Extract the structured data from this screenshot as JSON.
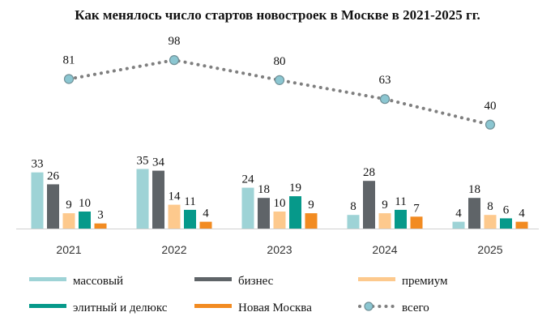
{
  "title": "Как менялось число стартов новостроек в Москве в 2021-2025 гг.",
  "chart_data": {
    "type": "bar",
    "title": "Как менялось число стартов новостроек в Москве в 2021-2025 гг.",
    "categories": [
      "2021",
      "2022",
      "2023",
      "2024",
      "2025"
    ],
    "series": [
      {
        "name": "массовый",
        "type": "bar",
        "color": "#9ed3d6",
        "values": [
          33,
          35,
          24,
          8,
          4
        ]
      },
      {
        "name": "бизнес",
        "type": "bar",
        "color": "#5f6468",
        "values": [
          26,
          34,
          18,
          28,
          18
        ]
      },
      {
        "name": "премиум",
        "type": "bar",
        "color": "#fdc98d",
        "values": [
          9,
          14,
          10,
          9,
          8
        ]
      },
      {
        "name": "элитный и делюкс",
        "type": "bar",
        "color": "#06998a",
        "values": [
          10,
          11,
          19,
          11,
          6
        ]
      },
      {
        "name": "Новая Москва",
        "type": "bar",
        "color": "#f28b21",
        "values": [
          3,
          4,
          9,
          7,
          4
        ]
      },
      {
        "name": "всего",
        "type": "line",
        "color": "#8bc6d1",
        "line_color": "#7f7f7f",
        "line_style": "dotted",
        "values": [
          81,
          98,
          80,
          63,
          40
        ]
      }
    ],
    "legend_position": "bottom",
    "grid": false
  }
}
